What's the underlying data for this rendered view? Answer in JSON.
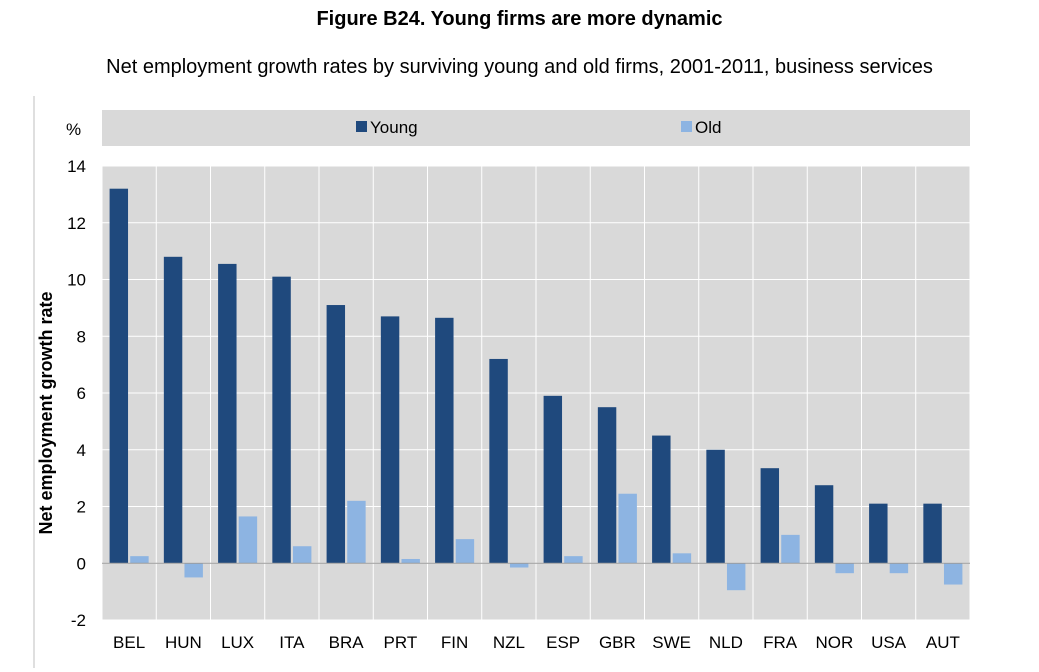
{
  "chart_data": {
    "type": "bar",
    "title": "Figure B24. Young firms are more dynamic",
    "subtitle": "Net employment growth rates by surviving young and old firms, 2001-2011, business services",
    "ylabel": "Net employment growth rate",
    "yunit": "%",
    "ylim": [
      -2,
      14
    ],
    "yticks": [
      -2,
      0,
      2,
      4,
      6,
      8,
      10,
      12,
      14
    ],
    "grid": true,
    "legend_position": "top",
    "categories": [
      "BEL",
      "HUN",
      "LUX",
      "ITA",
      "BRA",
      "PRT",
      "FIN",
      "NZL",
      "ESP",
      "GBR",
      "SWE",
      "NLD",
      "FRA",
      "NOR",
      "USA",
      "AUT"
    ],
    "series": [
      {
        "name": "Young",
        "color": "#1f497d",
        "values": [
          13.2,
          10.8,
          10.55,
          10.1,
          9.1,
          8.7,
          8.65,
          7.2,
          5.9,
          5.5,
          4.5,
          4.0,
          3.35,
          2.75,
          2.1,
          2.1
        ]
      },
      {
        "name": "Old",
        "color": "#8db4e2",
        "values": [
          0.25,
          -0.5,
          1.65,
          0.6,
          2.2,
          0.15,
          0.85,
          -0.15,
          0.25,
          2.45,
          0.35,
          -0.95,
          1.0,
          -0.35,
          -0.35,
          -0.75
        ]
      }
    ]
  }
}
